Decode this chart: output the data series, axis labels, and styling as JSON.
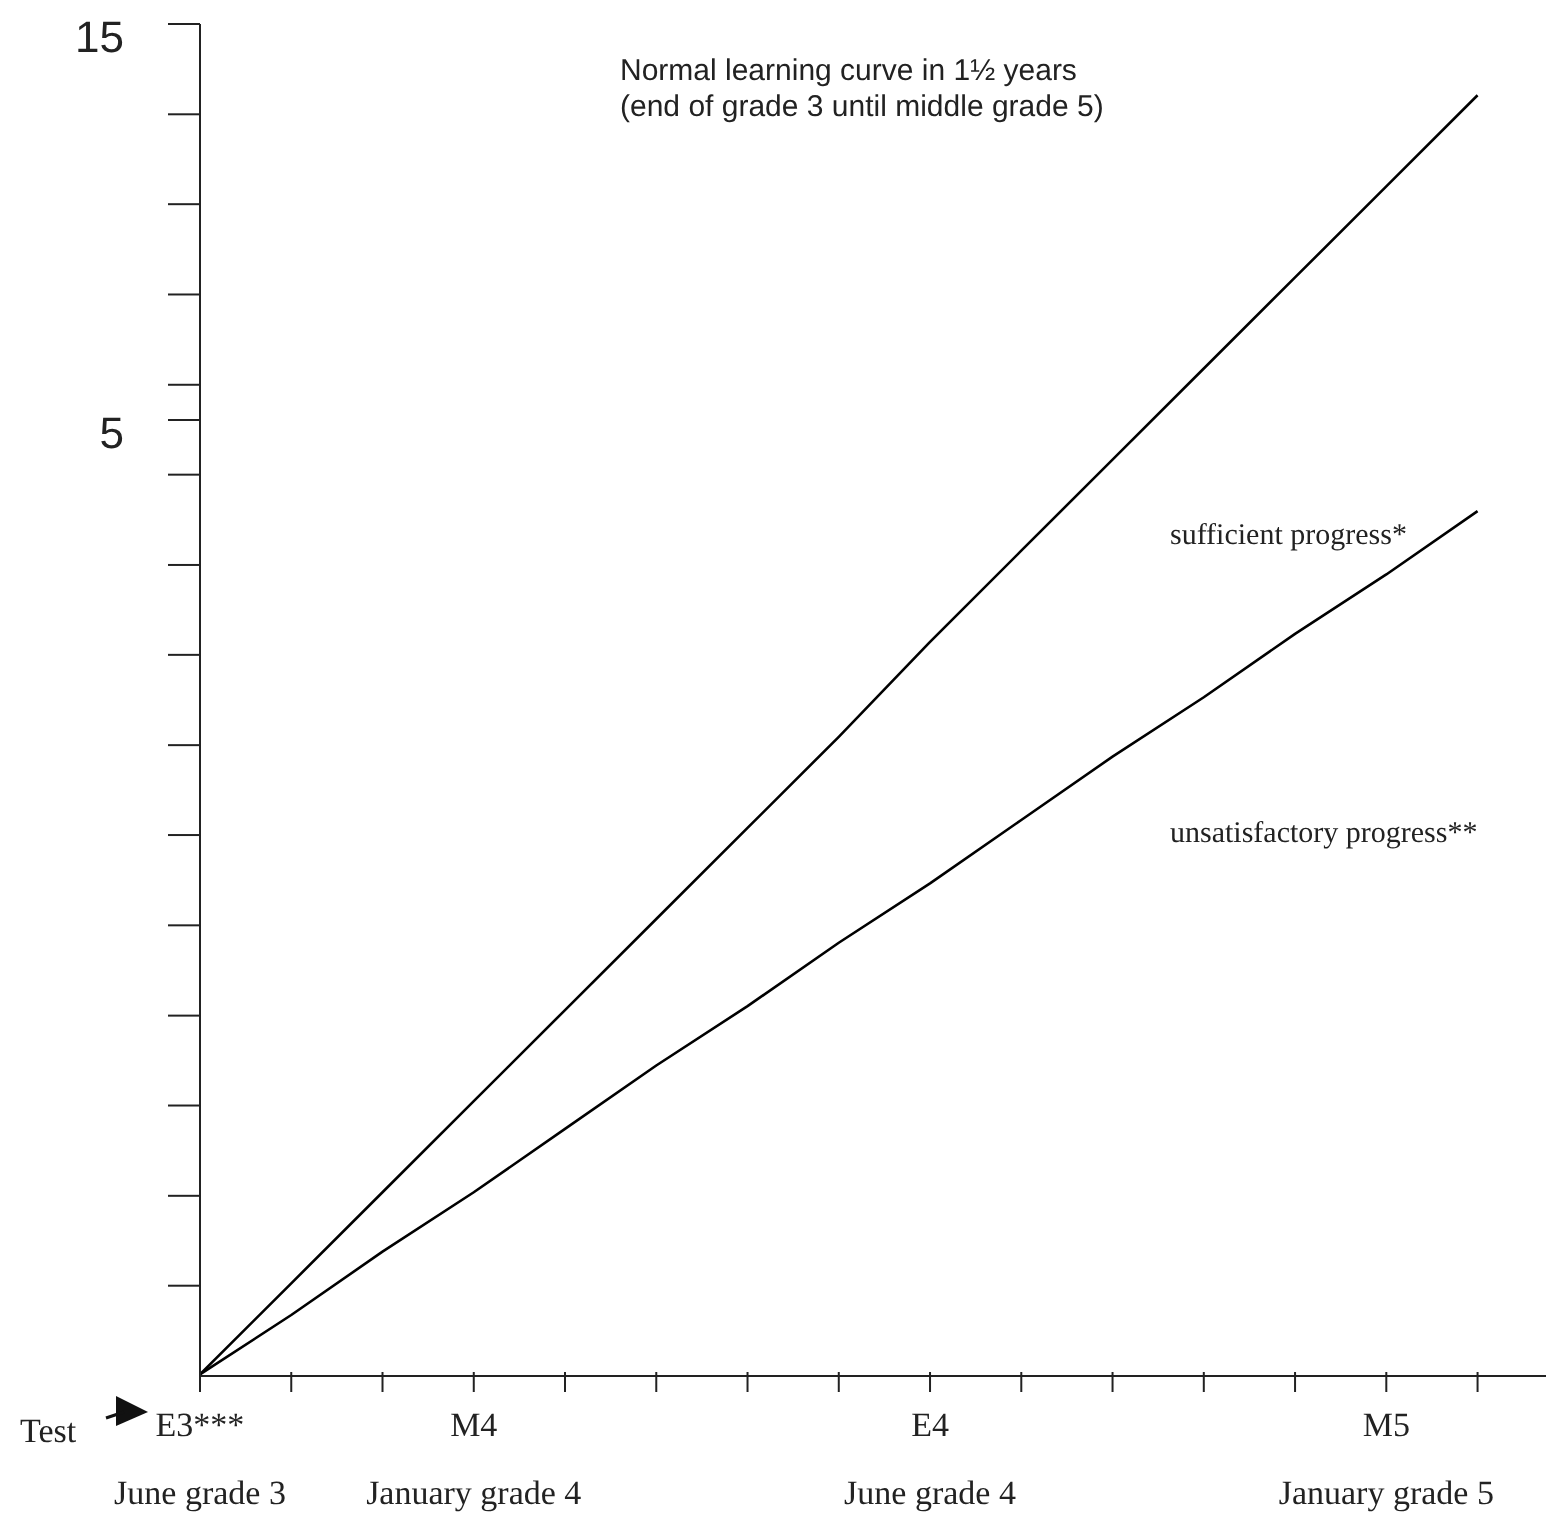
{
  "chart_data": {
    "type": "line",
    "ylim": [
      -19.14,
      15
    ],
    "yticks": [
      15,
      {
        "value": 12.72,
        "label": null
      },
      {
        "value": 10.45,
        "label": null
      },
      {
        "value": 8.17,
        "label": null
      },
      {
        "value": 5.89,
        "label": null
      },
      5,
      {
        "value": 3.62,
        "label": null
      },
      {
        "value": 1.34,
        "label": null
      },
      {
        "value": -0.93,
        "label": null
      },
      {
        "value": -3.21,
        "label": null
      },
      {
        "value": -5.48,
        "label": null
      },
      {
        "value": -7.76,
        "label": null
      },
      {
        "value": -10.04,
        "label": null
      },
      {
        "value": -12.31,
        "label": null
      },
      {
        "value": -14.59,
        "label": null
      },
      {
        "value": -16.86,
        "label": null
      }
    ],
    "categories": [
      "E3***\nJune grade 3",
      null,
      null,
      "M4\nJanuary grade 4",
      null,
      null,
      null,
      null,
      "E4\nJune grade 4",
      null,
      null,
      null,
      null,
      "M5\nJanuary grade 5",
      null
    ],
    "series": [
      {
        "color": "#000000",
        "values": [
          -19.1,
          -16.8,
          -14.5,
          -12.2,
          -9.9,
          -7.6,
          -5.3,
          -3.0,
          -0.6,
          1.7,
          4.0,
          6.3,
          8.6,
          10.9,
          13.2
        ]
      },
      {
        "color": "#000000",
        "values": [
          -19.1,
          -17.6,
          -16.0,
          -14.5,
          -12.9,
          -11.3,
          -9.8,
          -8.2,
          -6.7,
          -5.1,
          -3.5,
          -2.0,
          -0.4,
          1.1,
          2.7
        ]
      }
    ],
    "marker": "none",
    "line_style": "solid",
    "annotations": [
      "Normal learning curve in 1½ years\n(end of grade 3 until middle grade 5)",
      "sufficient progress*",
      "unsatisfactory progress**",
      "Test"
    ]
  }
}
